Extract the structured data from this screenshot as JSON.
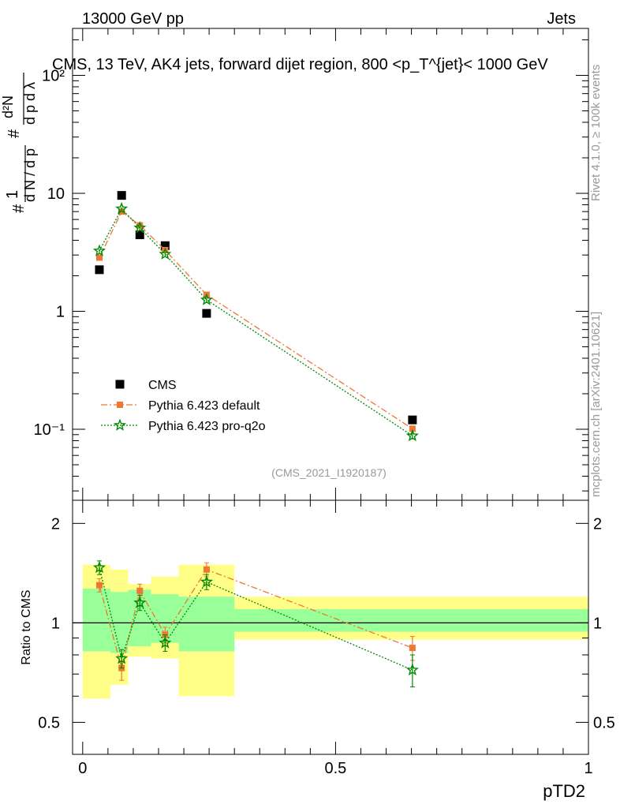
{
  "header": {
    "left": "13000 GeV pp",
    "right": "Jets"
  },
  "side": {
    "rivet": "Rivet 4.1.0, ≥ 100k events",
    "mcplots": "mcplots.cern.ch [arXiv:2401.10621]"
  },
  "chart_data": [
    {
      "type": "scatter",
      "panel": "main",
      "title": "CMS, 13 TeV, AK4 jets, forward dijet region, 800 <p_T^{jet}< 1000 GeV",
      "ylabel": "1/(dN/dpT) d²N/(dpT dλ)",
      "yscale": "log",
      "ylim": [
        0.025,
        250
      ],
      "xlim": [
        -0.02,
        1.0
      ],
      "y_tick_labels": [
        "10⁻¹",
        "1",
        "10",
        "10²"
      ],
      "analysis_tag": "(CMS_2021_I1920187)",
      "x": [
        0.033,
        0.077,
        0.113,
        0.163,
        0.245,
        0.652
      ],
      "series": [
        {
          "name": "CMS",
          "color": "#000000",
          "marker": "square",
          "values": [
            2.25,
            9.6,
            4.45,
            3.6,
            0.96,
            0.12
          ]
        },
        {
          "name": "Pythia 6.423 default",
          "color": "#ee7733",
          "marker": "square",
          "line": "dashdot",
          "values": [
            2.85,
            7.0,
            5.35,
            3.3,
            1.38,
            0.101
          ],
          "errors": [
            0.1,
            0.2,
            0.15,
            0.1,
            0.05,
            0.006
          ]
        },
        {
          "name": "Pythia 6.423 pro-q2o",
          "color": "#008800",
          "marker": "star",
          "line": "dotted",
          "values": [
            3.25,
            7.4,
            5.1,
            3.05,
            1.25,
            0.088
          ],
          "errors": [
            0.1,
            0.2,
            0.15,
            0.1,
            0.05,
            0.006
          ]
        }
      ]
    },
    {
      "type": "scatter",
      "panel": "ratio",
      "xlabel": "pTD2",
      "ylabel": "Ratio to CMS",
      "ylim": [
        0.4,
        2.35
      ],
      "xlim": [
        -0.02,
        1.0
      ],
      "y_ticks": [
        0.5,
        1,
        2
      ],
      "y_tick_labels": [
        "0.5",
        "1",
        "2"
      ],
      "x_ticks": [
        0,
        0.5,
        1
      ],
      "x_tick_labels": [
        "0",
        "0.5",
        "1"
      ],
      "reference": 1,
      "bins": [
        0,
        0.055,
        0.09,
        0.135,
        0.19,
        0.3,
        1.0
      ],
      "band_inner": [
        [
          0.82,
          1.27
        ],
        [
          0.81,
          1.24
        ],
        [
          0.85,
          1.26
        ],
        [
          0.87,
          1.22
        ],
        [
          0.82,
          1.2
        ],
        [
          0.94,
          1.1
        ]
      ],
      "band_outer": [
        [
          0.59,
          1.5
        ],
        [
          0.65,
          1.45
        ],
        [
          0.79,
          1.31
        ],
        [
          0.78,
          1.38
        ],
        [
          0.6,
          1.5
        ],
        [
          0.89,
          1.2
        ]
      ],
      "band_inner_color": "#99ff99",
      "band_outer_color": "#ffff88",
      "x": [
        0.033,
        0.077,
        0.113,
        0.163,
        0.245,
        0.652
      ],
      "series": [
        {
          "name": "Pythia 6.423 default",
          "color": "#ee7733",
          "marker": "square",
          "line": "dashdot",
          "values": [
            1.3,
            0.73,
            1.25,
            0.92,
            1.45,
            0.84
          ],
          "errors": [
            0.06,
            0.06,
            0.06,
            0.05,
            0.07,
            0.07
          ]
        },
        {
          "name": "Pythia 6.423 pro-q2o",
          "color": "#008800",
          "marker": "star",
          "line": "dotted",
          "values": [
            1.47,
            0.78,
            1.15,
            0.87,
            1.33,
            0.72
          ],
          "errors": [
            0.07,
            0.05,
            0.06,
            0.05,
            0.07,
            0.08
          ]
        }
      ]
    }
  ]
}
